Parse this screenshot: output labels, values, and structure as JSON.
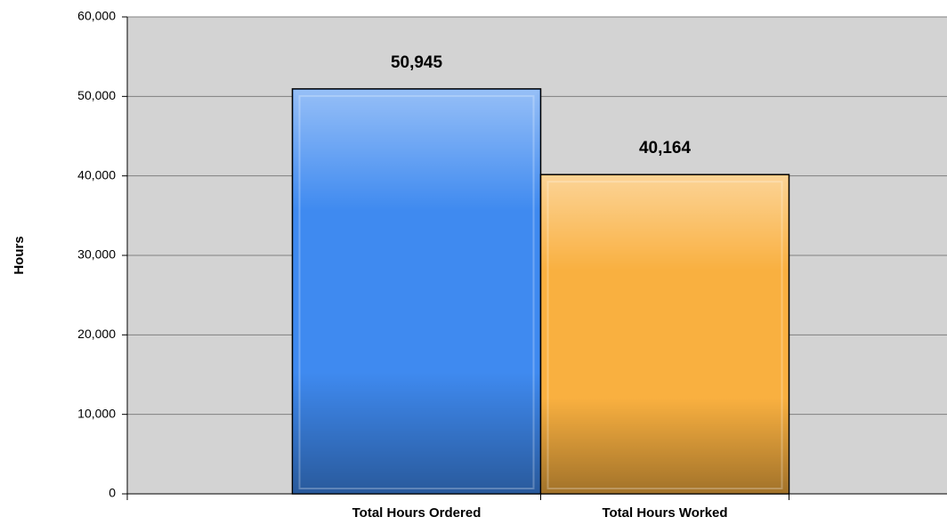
{
  "chart_data": {
    "type": "bar",
    "ylabel": "Hours",
    "categories": [
      "Total Hours Ordered",
      "Total Hours Worked"
    ],
    "values": [
      50945,
      40164
    ],
    "value_labels": [
      "50,945",
      "40,164"
    ],
    "colors": [
      "#3f8af0",
      "#f9b040"
    ],
    "ylim": [
      0,
      60000
    ],
    "yticks": [
      0,
      {
        "value": 10000,
        "label": "10,000"
      },
      {
        "value": 20000,
        "label": "20,000"
      },
      {
        "value": 30000,
        "label": "30,000"
      },
      {
        "value": 40000,
        "label": "40,000"
      },
      {
        "value": 50000,
        "label": "50,000"
      },
      {
        "value": 60000,
        "label": "60,000"
      }
    ],
    "grid": true
  }
}
